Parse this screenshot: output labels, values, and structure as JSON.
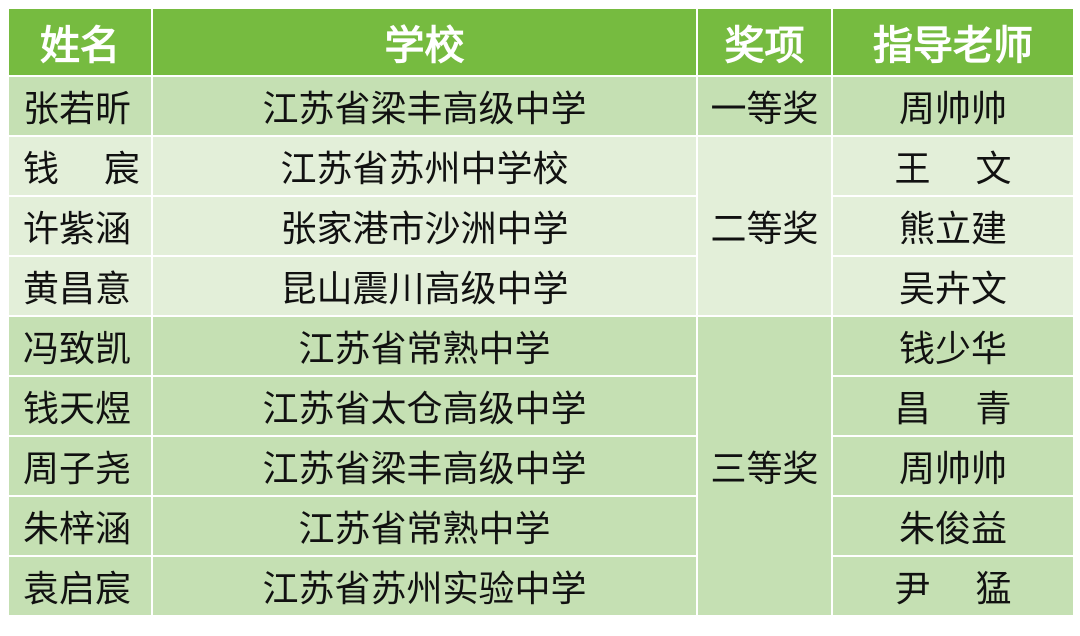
{
  "colors": {
    "header": "#76bb40",
    "dark_row": "#c5e0b3",
    "light_row": "#e3efd9",
    "border": "#ffffff"
  },
  "headers": [
    "姓名",
    "学校",
    "奖项",
    "指导老师"
  ],
  "rows": [
    {
      "name": "张若昕",
      "school": "江苏省梁丰高级中学",
      "award": "一等奖",
      "teacher": "周帅帅"
    },
    {
      "name": "钱　 宸",
      "school": "江苏省苏州中学校",
      "award": "二等奖",
      "teacher": "王　 文"
    },
    {
      "name": "许紫涵",
      "school": "张家港市沙洲中学",
      "award": "",
      "teacher": "熊立建"
    },
    {
      "name": "黄昌意",
      "school": "昆山震川高级中学",
      "award": "",
      "teacher": "吴卉文"
    },
    {
      "name": "冯致凯",
      "school": "江苏省常熟中学",
      "award": "三等奖",
      "teacher": "钱少华"
    },
    {
      "name": "钱天煜",
      "school": "江苏省太仓高级中学",
      "award": "",
      "teacher": "昌　 青"
    },
    {
      "name": "周子尧",
      "school": "江苏省梁丰高级中学",
      "award": "",
      "teacher": "周帅帅"
    },
    {
      "name": "朱梓涵",
      "school": "江苏省常熟中学",
      "award": "",
      "teacher": "朱俊益"
    },
    {
      "name": "袁启宸",
      "school": "江苏省苏州实验中学",
      "award": "",
      "teacher": "尹　 猛"
    }
  ]
}
